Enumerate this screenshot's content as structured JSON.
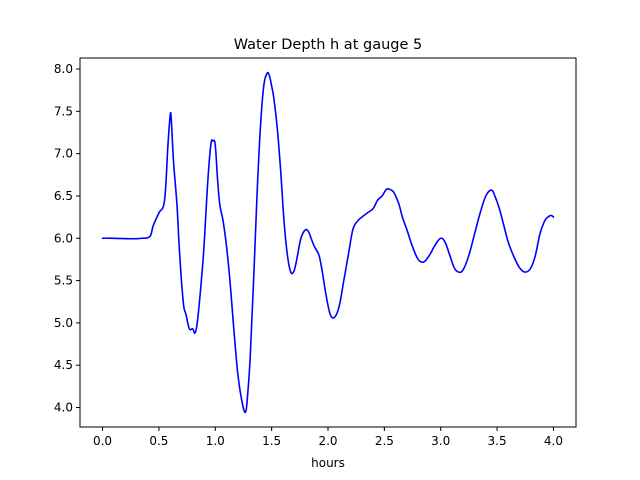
{
  "chart_data": {
    "type": "line",
    "title": "Water Depth h at gauge 5",
    "xlabel": "hours",
    "ylabel": "",
    "xlim": [
      -0.2,
      4.2
    ],
    "ylim": [
      3.77,
      8.13
    ],
    "xticks": [
      0.0,
      0.5,
      1.0,
      1.5,
      2.0,
      2.5,
      3.0,
      3.5,
      4.0
    ],
    "xtick_labels": [
      "0.0",
      "0.5",
      "1.0",
      "1.5",
      "2.0",
      "2.5",
      "3.0",
      "3.5",
      "4.0"
    ],
    "yticks": [
      4.0,
      4.5,
      5.0,
      5.5,
      6.0,
      6.5,
      7.0,
      7.5,
      8.0
    ],
    "ytick_labels": [
      "4.0",
      "4.5",
      "5.0",
      "5.5",
      "6.0",
      "6.5",
      "7.0",
      "7.5",
      "8.0"
    ],
    "grid": false,
    "series": [
      {
        "color": "#0000ff",
        "x": [
          0.0,
          0.1,
          0.2,
          0.3,
          0.35,
          0.42,
          0.45,
          0.5,
          0.55,
          0.58,
          0.6,
          0.61,
          0.63,
          0.66,
          0.68,
          0.7,
          0.72,
          0.74,
          0.77,
          0.8,
          0.82,
          0.84,
          0.87,
          0.9,
          0.93,
          0.96,
          0.98,
          1.0,
          1.02,
          1.04,
          1.07,
          1.1,
          1.13,
          1.16,
          1.2,
          1.24,
          1.27,
          1.29,
          1.31,
          1.34,
          1.37,
          1.4,
          1.43,
          1.46,
          1.48,
          1.5,
          1.52,
          1.55,
          1.58,
          1.61,
          1.64,
          1.67,
          1.7,
          1.73,
          1.76,
          1.8,
          1.83,
          1.85,
          1.88,
          1.92,
          1.95,
          1.98,
          2.02,
          2.06,
          2.1,
          2.14,
          2.18,
          2.22,
          2.26,
          2.3,
          2.35,
          2.4,
          2.44,
          2.48,
          2.52,
          2.56,
          2.58,
          2.6,
          2.63,
          2.66,
          2.7,
          2.75,
          2.8,
          2.85,
          2.9,
          2.95,
          3.0,
          3.04,
          3.08,
          3.12,
          3.16,
          3.2,
          3.25,
          3.3,
          3.35,
          3.4,
          3.45,
          3.48,
          3.52,
          3.56,
          3.6,
          3.65,
          3.7,
          3.75,
          3.8,
          3.84,
          3.88,
          3.92,
          3.95,
          3.98,
          4.0
        ],
        "y": [
          6.0,
          6.0,
          5.995,
          5.995,
          6.0,
          6.02,
          6.15,
          6.3,
          6.45,
          7.1,
          7.45,
          7.4,
          6.9,
          6.4,
          5.9,
          5.5,
          5.2,
          5.1,
          4.93,
          4.93,
          4.88,
          5.0,
          5.4,
          5.9,
          6.6,
          7.1,
          7.15,
          7.1,
          6.7,
          6.4,
          6.2,
          5.9,
          5.5,
          5.0,
          4.4,
          4.05,
          3.95,
          4.2,
          4.6,
          5.5,
          6.5,
          7.3,
          7.8,
          7.95,
          7.92,
          7.8,
          7.65,
          7.3,
          6.8,
          6.2,
          5.8,
          5.6,
          5.62,
          5.8,
          6.0,
          6.1,
          6.07,
          6.0,
          5.9,
          5.8,
          5.6,
          5.35,
          5.1,
          5.07,
          5.2,
          5.5,
          5.8,
          6.1,
          6.2,
          6.25,
          6.3,
          6.35,
          6.45,
          6.5,
          6.58,
          6.57,
          6.55,
          6.5,
          6.4,
          6.25,
          6.1,
          5.9,
          5.75,
          5.72,
          5.8,
          5.92,
          6.0,
          5.95,
          5.8,
          5.65,
          5.6,
          5.63,
          5.8,
          6.05,
          6.3,
          6.5,
          6.57,
          6.5,
          6.35,
          6.15,
          5.95,
          5.78,
          5.65,
          5.6,
          5.65,
          5.8,
          6.05,
          6.2,
          6.25,
          6.27,
          6.25
        ]
      }
    ]
  }
}
